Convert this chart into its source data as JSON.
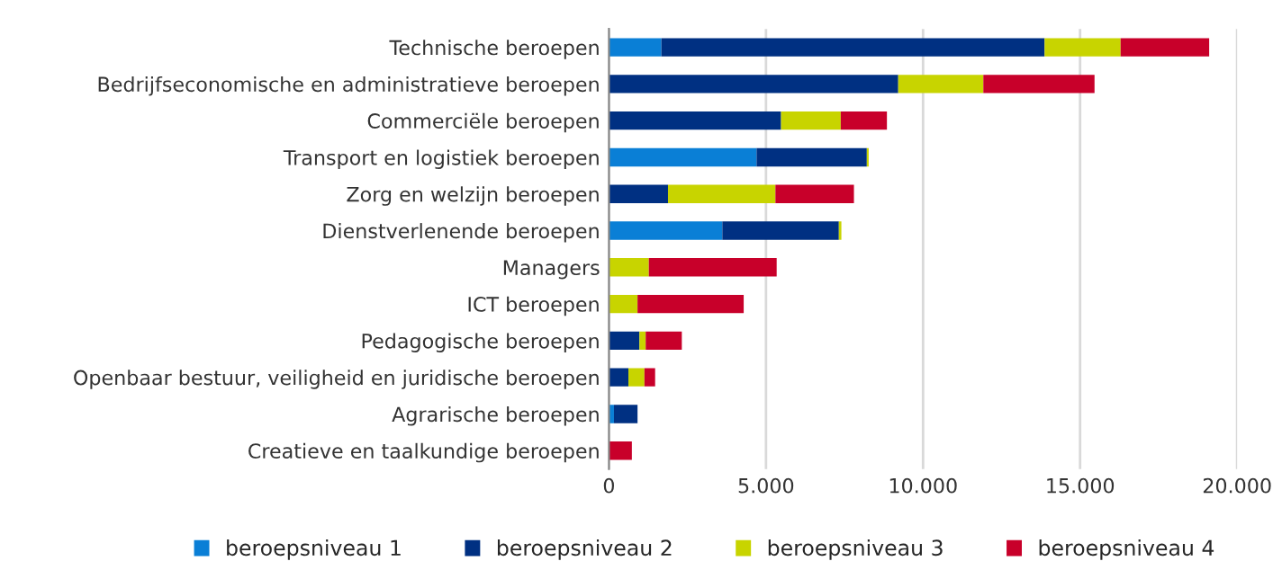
{
  "chart_data": {
    "type": "bar",
    "orientation": "horizontal",
    "stacked": true,
    "categories": [
      "Technische beroepen",
      "Bedrijfseconomische en administratieve beroepen",
      "Commerciële beroepen",
      "Transport en logistiek beroepen",
      "Zorg en welzijn beroepen",
      "Dienstverlenende beroepen",
      "Managers",
      "ICT beroepen",
      "Pedagogische beroepen",
      "Openbaar bestuur, veiligheid en juridische beroepen",
      "Agrarische beroepen",
      "Creatieve en taalkundige beroepen"
    ],
    "series": [
      {
        "name": "beroepsniveau 1",
        "color": "#0a7fd6",
        "values": [
          1670,
          null,
          null,
          4700,
          null,
          3610,
          null,
          null,
          null,
          null,
          160,
          null
        ]
      },
      {
        "name": "beroepsniveau 2",
        "color": "#003082",
        "values": [
          12200,
          9210,
          5480,
          3510,
          1880,
          3710,
          null,
          null,
          970,
          620,
          750,
          null
        ]
      },
      {
        "name": "beroepsniveau 3",
        "color": "#c8d400",
        "values": [
          2420,
          2710,
          1900,
          60,
          3420,
          80,
          1270,
          910,
          200,
          510,
          null,
          null
        ]
      },
      {
        "name": "beroepsniveau 4",
        "color": "#c8002a",
        "values": [
          2820,
          3540,
          1470,
          null,
          2500,
          null,
          4070,
          3380,
          1150,
          340,
          null,
          730
        ]
      }
    ],
    "xlim": [
      0,
      20000
    ],
    "xticks": [
      0,
      {
        "value": 5000,
        "label": "5.000"
      },
      {
        "value": 10000,
        "label": "10.000"
      },
      {
        "value": 15000,
        "label": "15.000"
      },
      {
        "value": 20000,
        "label": "20.000"
      }
    ],
    "grid": "x",
    "legend": "bottom"
  }
}
